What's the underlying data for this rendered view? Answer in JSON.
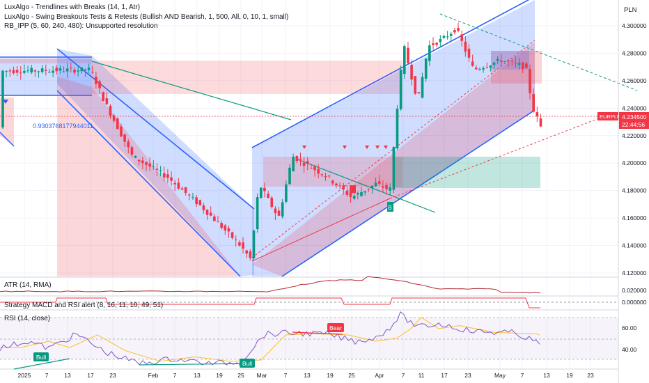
{
  "header": {
    "currency": "PLN",
    "indicators": [
      "LuxAlgo - Trendlines with Breaks (14, 1, Atr)",
      "LuxAlgo - Swing Breakouts Tests & Retests (Bullish AND Bearish, 1, 500, All, 0, 10, 1, small)",
      "RB_IPP (5, 60, 240, 480): Unsupported resolution"
    ]
  },
  "price_tag": {
    "symbol": "EURPLN",
    "price": "4.234500",
    "countdown": "22:44:56",
    "color": "#f23645"
  },
  "annotation": "0.9303768177944011",
  "markers": {
    "bull": "Bull",
    "bear": "Bear",
    "b_small": "B"
  },
  "panes": {
    "atr": {
      "title": "ATR (14, RMA)",
      "tick": "0.020000"
    },
    "macd": {
      "title": "Strategy MACD and RSI alert (8, 16, 11, 10, 49, 51)",
      "tick": "0.000000"
    },
    "rsi": {
      "title": "RSI (14, close)",
      "ticks": [
        "60.00",
        "40.00"
      ]
    }
  },
  "colors": {
    "bull": "#089981",
    "bear": "#f23645",
    "channel_line": "#2962ff",
    "rsi_line": "#7e57c2",
    "rsi_ma": "#fbc02d",
    "atr_line": "#b22833"
  },
  "chart_data": {
    "type": "candlestick",
    "y_ticks": [
      "4.300000",
      "4.280000",
      "4.260000",
      "4.240000",
      "4.220000",
      "4.200000",
      "4.180000",
      "4.160000",
      "4.140000",
      "4.120000"
    ],
    "ylim": [
      4.11,
      4.31
    ],
    "x_ticks": [
      "2025",
      "7",
      "13",
      "17",
      "23",
      "Feb",
      "7",
      "13",
      "19",
      "25",
      "Mar",
      "7",
      "13",
      "19",
      "25",
      "Apr",
      "7",
      "11",
      "17",
      "23",
      "May",
      "7",
      "13",
      "19",
      "23"
    ],
    "last_price": 4.2345
  }
}
